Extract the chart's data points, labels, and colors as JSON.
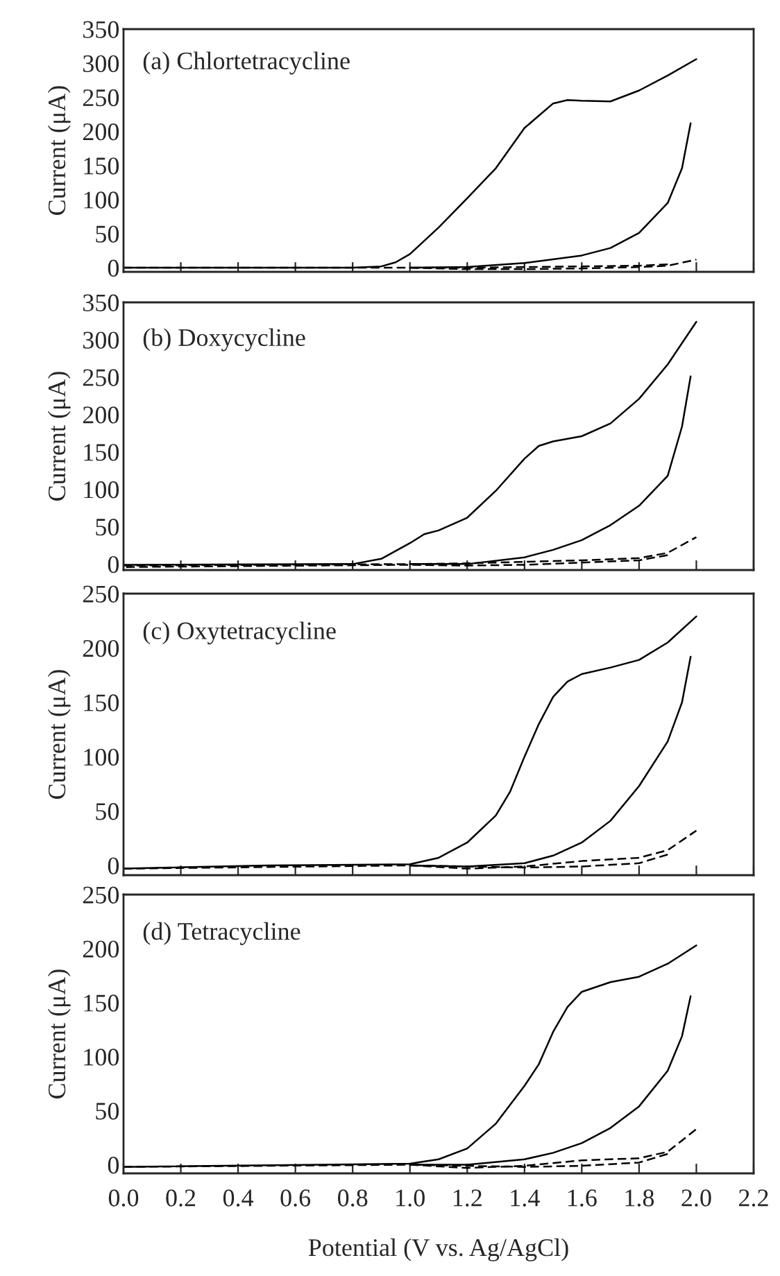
{
  "chart_data": [
    {
      "type": "line",
      "annotations": [
        "(a) Chlortetracycline"
      ],
      "ylabel": "Current (μA)",
      "xlim": [
        0,
        2.2
      ],
      "ylim": [
        -6,
        350
      ],
      "yticks": [
        0,
        50,
        100,
        150,
        200,
        250,
        300,
        350
      ],
      "xticks": [
        {
          "value": 0,
          "label": null
        },
        {
          "value": 0.2,
          "label": null
        },
        {
          "value": 0.4,
          "label": null
        },
        {
          "value": 0.6,
          "label": null
        },
        {
          "value": 0.8,
          "label": null
        },
        {
          "value": 1,
          "label": null
        },
        {
          "value": 1.2,
          "label": null
        },
        {
          "value": 1.4,
          "label": null
        },
        {
          "value": 1.6,
          "label": null
        },
        {
          "value": 1.8,
          "label": null
        },
        {
          "value": 2,
          "label": null
        },
        {
          "value": 2.2,
          "label": null
        }
      ],
      "tick_labels": "y",
      "series": [
        {
          "color": "#000000",
          "line_style": "solid",
          "x": [
            0,
            0.8,
            0.9,
            0.95,
            1.0,
            1.1,
            1.2,
            1.3,
            1.4,
            1.5,
            1.55,
            1.6,
            1.7,
            1.8,
            1.9,
            2.0
          ],
          "values": [
            0,
            0,
            2,
            8,
            20,
            59,
            102,
            146,
            205,
            241,
            246,
            245,
            244,
            260,
            282,
            306
          ]
        },
        {
          "color": "#000000",
          "line_style": "solid",
          "x": [
            1.98,
            1.95,
            1.9,
            1.8,
            1.7,
            1.6,
            1.4,
            1.2,
            1.0
          ],
          "values": [
            212,
            146,
            95,
            51,
            29,
            18,
            7,
            1,
            0
          ]
        },
        {
          "color": "#000000",
          "line_style": "dashed",
          "x": [
            0,
            1.0,
            1.2,
            1.4,
            1.6,
            1.8,
            1.9,
            2.0
          ],
          "values": [
            0,
            0,
            -2,
            -2,
            -1,
            1,
            3,
            12
          ]
        },
        {
          "color": "#000000",
          "line_style": "dashed",
          "x": [
            1.9,
            1.8,
            1.6,
            1.4,
            1.2,
            1.0
          ],
          "values": [
            5,
            3,
            2,
            1,
            0,
            0
          ]
        }
      ]
    },
    {
      "type": "line",
      "annotations": [
        "(b) Doxycycline"
      ],
      "ylabel": "Current (μA)",
      "xlim": [
        0,
        2.2
      ],
      "ylim": [
        -8,
        350
      ],
      "yticks": [
        0,
        50,
        100,
        150,
        200,
        250,
        300,
        350
      ],
      "xticks": [
        {
          "value": 0,
          "label": null
        },
        {
          "value": 0.2,
          "label": null
        },
        {
          "value": 0.4,
          "label": null
        },
        {
          "value": 0.6,
          "label": null
        },
        {
          "value": 0.8,
          "label": null
        },
        {
          "value": 1,
          "label": null
        },
        {
          "value": 1.2,
          "label": null
        },
        {
          "value": 1.4,
          "label": null
        },
        {
          "value": 1.6,
          "label": null
        },
        {
          "value": 1.8,
          "label": null
        },
        {
          "value": 2,
          "label": null
        },
        {
          "value": 2.2,
          "label": null
        }
      ],
      "tick_labels": "y",
      "series": [
        {
          "color": "#000000",
          "line_style": "solid",
          "x": [
            0,
            0.8,
            0.9,
            1.0,
            1.05,
            1.1,
            1.2,
            1.3,
            1.4,
            1.45,
            1.5,
            1.6,
            1.7,
            1.8,
            1.9,
            2.0
          ],
          "values": [
            -1,
            0,
            7,
            28,
            40,
            45,
            62,
            98,
            141,
            158,
            164,
            171,
            188,
            221,
            267,
            324
          ]
        },
        {
          "color": "#000000",
          "line_style": "solid",
          "x": [
            1.98,
            1.95,
            1.9,
            1.8,
            1.7,
            1.6,
            1.5,
            1.4,
            1.2,
            1.0
          ],
          "values": [
            251,
            184,
            118,
            78,
            52,
            32,
            19,
            9,
            0,
            0
          ]
        },
        {
          "color": "#000000",
          "line_style": "dashed",
          "x": [
            0,
            1.0,
            1.2,
            1.4,
            1.6,
            1.8,
            1.9,
            2.0
          ],
          "values": [
            -2,
            0,
            1,
            3,
            5,
            8,
            15,
            36
          ]
        },
        {
          "color": "#000000",
          "line_style": "dashed",
          "x": [
            1.9,
            1.8,
            1.6,
            1.4,
            1.2,
            1.0,
            0
          ],
          "values": [
            12,
            5,
            2,
            -1,
            -2,
            -1,
            -4
          ]
        }
      ]
    },
    {
      "type": "line",
      "annotations": [
        "(c) Oxytetracycline"
      ],
      "ylabel": "Current (μA)",
      "xlim": [
        0,
        2.2
      ],
      "ylim": [
        -9,
        250
      ],
      "yticks": [
        0,
        50,
        100,
        150,
        200,
        250
      ],
      "xticks": [
        {
          "value": 0,
          "label": null
        },
        {
          "value": 0.2,
          "label": null
        },
        {
          "value": 0.4,
          "label": null
        },
        {
          "value": 0.6,
          "label": null
        },
        {
          "value": 0.8,
          "label": null
        },
        {
          "value": 1,
          "label": null
        },
        {
          "value": 1.2,
          "label": null
        },
        {
          "value": 1.4,
          "label": null
        },
        {
          "value": 1.6,
          "label": null
        },
        {
          "value": 1.8,
          "label": null
        },
        {
          "value": 2,
          "label": null
        },
        {
          "value": 2.2,
          "label": null
        }
      ],
      "tick_labels": "y",
      "series": [
        {
          "color": "#000000",
          "line_style": "solid",
          "x": [
            0,
            0.5,
            1.0,
            1.1,
            1.2,
            1.3,
            1.35,
            1.4,
            1.45,
            1.5,
            1.55,
            1.6,
            1.7,
            1.8,
            1.9,
            2.0
          ],
          "values": [
            -3,
            0,
            1,
            7,
            21,
            46,
            68,
            100,
            130,
            155,
            169,
            176,
            182,
            189,
            205,
            229
          ]
        },
        {
          "color": "#000000",
          "line_style": "solid",
          "x": [
            1.98,
            1.95,
            1.9,
            1.8,
            1.7,
            1.6,
            1.5,
            1.4,
            1.2,
            1.0
          ],
          "values": [
            192,
            150,
            114,
            73,
            41,
            21,
            9,
            2,
            -1,
            0
          ]
        },
        {
          "color": "#000000",
          "line_style": "dashed",
          "x": [
            0,
            1.0,
            1.2,
            1.4,
            1.6,
            1.8,
            1.9,
            2.0
          ],
          "values": [
            -3,
            0,
            -3,
            -1,
            4,
            7,
            14,
            32
          ]
        },
        {
          "color": "#000000",
          "line_style": "dashed",
          "x": [
            1.9,
            1.8,
            1.6,
            1.4,
            1.2,
            1.0
          ],
          "values": [
            10,
            2,
            -1,
            -2,
            -1,
            0
          ]
        }
      ]
    },
    {
      "type": "line",
      "annotations": [
        "(d) Tetracycline"
      ],
      "xlabel": "Potential (V vs. Ag/AgCl)",
      "ylabel": "Current (μA)",
      "xlim": [
        0,
        2.2
      ],
      "ylim": [
        -8,
        250
      ],
      "yticks": [
        0,
        50,
        100,
        150,
        200,
        250
      ],
      "xticks": [
        {
          "value": 0,
          "label": "0.0"
        },
        {
          "value": 0.2,
          "label": "0.2"
        },
        {
          "value": 0.4,
          "label": "0.4"
        },
        {
          "value": 0.6,
          "label": "0.6"
        },
        {
          "value": 0.8,
          "label": "0.8"
        },
        {
          "value": 1,
          "label": "1.0"
        },
        {
          "value": 1.2,
          "label": "1.2"
        },
        {
          "value": 1.4,
          "label": "1.4"
        },
        {
          "value": 1.6,
          "label": "1.6"
        },
        {
          "value": 1.8,
          "label": "1.8"
        },
        {
          "value": 2,
          "label": "2.0"
        },
        {
          "value": 2.2,
          "label": "2.2"
        }
      ],
      "series": [
        {
          "color": "#000000",
          "line_style": "solid",
          "x": [
            0,
            1.0,
            1.1,
            1.2,
            1.3,
            1.4,
            1.45,
            1.5,
            1.55,
            1.6,
            1.7,
            1.8,
            1.9,
            2.0
          ],
          "values": [
            -2,
            1,
            5,
            15,
            38,
            73,
            93,
            123,
            146,
            160,
            169,
            174,
            186,
            203
          ]
        },
        {
          "color": "#000000",
          "line_style": "solid",
          "x": [
            1.98,
            1.95,
            1.9,
            1.8,
            1.7,
            1.6,
            1.5,
            1.4,
            1.2,
            1.0
          ],
          "values": [
            156,
            119,
            87,
            54,
            34,
            20,
            11,
            5,
            0,
            0
          ]
        },
        {
          "color": "#000000",
          "line_style": "dashed",
          "x": [
            0,
            1.0,
            1.2,
            1.4,
            1.6,
            1.8,
            1.9,
            2.0
          ],
          "values": [
            -2,
            0,
            -3,
            -1,
            4,
            6,
            12,
            33
          ]
        },
        {
          "color": "#000000",
          "line_style": "dashed",
          "x": [
            1.9,
            1.8,
            1.6,
            1.4,
            1.2,
            1.0
          ],
          "values": [
            10,
            2,
            -1,
            -2,
            -1,
            0
          ]
        }
      ]
    }
  ]
}
